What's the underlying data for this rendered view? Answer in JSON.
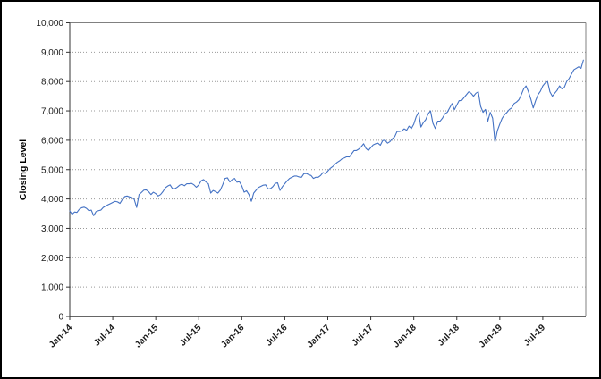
{
  "styles": {
    "line_color": "#4472C4",
    "grid_color": "#999999",
    "axis_color": "#333333",
    "plot_border_color": "#808080",
    "frame_border_color": "#000000",
    "background": "#FFFFFF",
    "text_color": "#1a1a1a"
  },
  "chart_data": {
    "type": "line",
    "ylabel": "Closing Level",
    "xlabel": "",
    "ylim": [
      0,
      10000
    ],
    "y_tick_interval": 1000,
    "y_tick_values": [
      0,
      1000,
      2000,
      3000,
      4000,
      5000,
      6000,
      7000,
      8000,
      9000,
      10000
    ],
    "y_tick_labels": [
      "0",
      "1,000",
      "2,000",
      "3,000",
      "4,000",
      "5,000",
      "6,000",
      "7,000",
      "8,000",
      "9,000",
      "10,000"
    ],
    "x_tick_labels": [
      "Jan-14",
      "Jul-14",
      "Jan-15",
      "Jul-15",
      "Jan-16",
      "Jul-16",
      "Jan-17",
      "Jul-17",
      "Jan-18",
      "Jul-18",
      "Jan-19",
      "Jul-19"
    ],
    "x_tick_interval_months": 6,
    "x_total_months": 72,
    "points_per_month": 3,
    "grid": "horizontal-dotted",
    "legend": "none",
    "series": [
      {
        "name": "Closing Level",
        "color": "#4472C4",
        "values": [
          3590,
          3480,
          3555,
          3540,
          3650,
          3700,
          3720,
          3680,
          3600,
          3620,
          3430,
          3570,
          3600,
          3620,
          3710,
          3760,
          3800,
          3840,
          3880,
          3920,
          3900,
          3850,
          3980,
          4080,
          4100,
          4070,
          4050,
          3980,
          3710,
          4150,
          4220,
          4300,
          4310,
          4250,
          4150,
          4230,
          4180,
          4100,
          4150,
          4250,
          4380,
          4440,
          4480,
          4350,
          4350,
          4400,
          4470,
          4500,
          4450,
          4520,
          4520,
          4530,
          4480,
          4400,
          4480,
          4620,
          4660,
          4580,
          4520,
          4200,
          4290,
          4250,
          4200,
          4300,
          4480,
          4700,
          4720,
          4580,
          4660,
          4700,
          4570,
          4590,
          4450,
          4230,
          4280,
          4150,
          3920,
          4200,
          4300,
          4390,
          4430,
          4470,
          4480,
          4340,
          4350,
          4420,
          4530,
          4550,
          4290,
          4420,
          4520,
          4620,
          4700,
          4740,
          4780,
          4780,
          4750,
          4740,
          4860,
          4870,
          4830,
          4800,
          4700,
          4740,
          4740,
          4800,
          4900,
          4863,
          4950,
          5040,
          5100,
          5180,
          5250,
          5300,
          5370,
          5400,
          5440,
          5430,
          5540,
          5650,
          5650,
          5700,
          5780,
          5880,
          5720,
          5650,
          5750,
          5840,
          5880,
          5900,
          5830,
          5990,
          6000,
          5900,
          5950,
          6050,
          6120,
          6300,
          6300,
          6320,
          6390,
          6340,
          6480,
          6400,
          6550,
          6800,
          6950,
          6450,
          6600,
          6700,
          6900,
          7000,
          6580,
          6400,
          6650,
          6650,
          6750,
          6900,
          6950,
          7100,
          7250,
          7040,
          7200,
          7350,
          7350,
          7450,
          7550,
          7650,
          7600,
          7500,
          7600,
          7650,
          7150,
          6950,
          7050,
          6650,
          6950,
          6750,
          5940,
          6330,
          6550,
          6750,
          6870,
          6950,
          7050,
          7100,
          7250,
          7300,
          7380,
          7550,
          7750,
          7850,
          7650,
          7400,
          7100,
          7350,
          7550,
          7670,
          7850,
          7950,
          8000,
          7650,
          7500,
          7600,
          7700,
          7850,
          7750,
          7800,
          8000,
          8100,
          8250,
          8400,
          8450,
          8500,
          8450,
          8730
        ]
      }
    ]
  }
}
